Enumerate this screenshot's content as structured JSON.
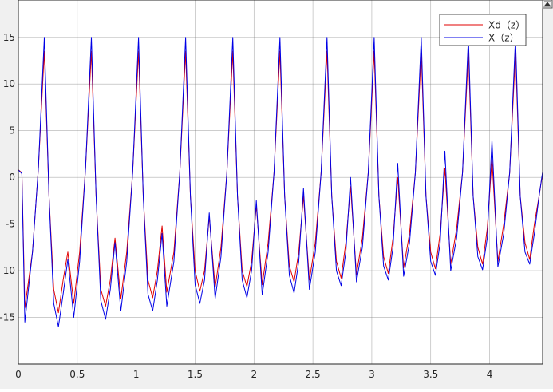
{
  "toolbar": {
    "restore_icon": "restore-axes-icon"
  },
  "colors": {
    "plot_bg": "#ffffff",
    "figure_bg": "#f0f0f0",
    "grid": "#6e6e6e",
    "axis": "#262626",
    "red": "#e00000",
    "blue": "#0000e6"
  },
  "chart_data": {
    "type": "line",
    "title": "",
    "xlabel": "",
    "ylabel": "",
    "xlim": [
      0,
      4.45
    ],
    "ylim": [
      -20,
      19
    ],
    "xticks": [
      0,
      0.5,
      1,
      1.5,
      2,
      2.5,
      3,
      3.5,
      4
    ],
    "xtick_labels": [
      "0",
      "0.5",
      "1",
      "1.5",
      "2",
      "2.5",
      "3",
      "3.5",
      "4"
    ],
    "yticks": [
      -15,
      -10,
      -5,
      0,
      5,
      10,
      15
    ],
    "ytick_labels": [
      "-15",
      "-10",
      "-5",
      "0",
      "5",
      "10",
      "15"
    ],
    "grid": true,
    "legend_position": "top-right",
    "series": [
      {
        "name": "Xd（z）",
        "color": "#e00000",
        "x": [
          0,
          0.03,
          0.055,
          0.12,
          0.17,
          0.22,
          0.26,
          0.3,
          0.34,
          0.38,
          0.42,
          0.47,
          0.52,
          0.57,
          0.62,
          0.66,
          0.7,
          0.74,
          0.78,
          0.82,
          0.87,
          0.92,
          0.97,
          1.02,
          1.06,
          1.1,
          1.14,
          1.18,
          1.22,
          1.26,
          1.32,
          1.37,
          1.42,
          1.46,
          1.5,
          1.54,
          1.58,
          1.62,
          1.67,
          1.72,
          1.77,
          1.82,
          1.86,
          1.9,
          1.94,
          1.98,
          2.02,
          2.07,
          2.12,
          2.17,
          2.22,
          2.26,
          2.3,
          2.34,
          2.38,
          2.42,
          2.47,
          2.52,
          2.57,
          2.62,
          2.66,
          2.7,
          2.74,
          2.78,
          2.82,
          2.87,
          2.92,
          2.97,
          3.02,
          3.06,
          3.1,
          3.14,
          3.18,
          3.22,
          3.27,
          3.32,
          3.37,
          3.42,
          3.46,
          3.5,
          3.54,
          3.58,
          3.62,
          3.67,
          3.72,
          3.77,
          3.82,
          3.86,
          3.9,
          3.94,
          3.98,
          4.02,
          4.07,
          4.12,
          4.17,
          4.22,
          4.26,
          4.3,
          4.34,
          4.38,
          4.42,
          4.45
        ],
        "y": [
          0.8,
          0.5,
          -14,
          -8,
          1,
          13.5,
          -2,
          -12,
          -14.5,
          -11,
          -8,
          -13.5,
          -8,
          1,
          13.5,
          -2,
          -12,
          -13.8,
          -11,
          -6.5,
          -13,
          -8,
          0.5,
          13.5,
          -2,
          -11,
          -12.9,
          -10,
          -5.2,
          -12.3,
          -8,
          0.5,
          13.5,
          -2,
          -10,
          -12.2,
          -10,
          -4.2,
          -11.8,
          -7.5,
          0.5,
          13.5,
          -2,
          -10,
          -11.7,
          -9,
          -3,
          -11.5,
          -7,
          0.5,
          13.5,
          -2,
          -9.5,
          -11.2,
          -8,
          -2,
          -11,
          -7,
          0.5,
          13.5,
          -2,
          -9,
          -10.8,
          -7,
          -1,
          -10.4,
          -6.5,
          0.5,
          13.5,
          -2,
          -8.5,
          -10.3,
          -6.5,
          0,
          -9.7,
          -6,
          0.5,
          13.5,
          -2,
          -8,
          -9.8,
          -6,
          1,
          -9.3,
          -5.5,
          0.5,
          13.5,
          -2,
          -7.5,
          -9.3,
          -5.5,
          2,
          -9,
          -5,
          0.5,
          13.5,
          -2,
          -7,
          -8.8,
          -5,
          -2,
          0.5
        ]
      },
      {
        "name": "X（z）",
        "color": "#0000e6",
        "x": [
          0,
          0.03,
          0.055,
          0.12,
          0.17,
          0.22,
          0.26,
          0.3,
          0.34,
          0.38,
          0.42,
          0.47,
          0.52,
          0.57,
          0.62,
          0.66,
          0.7,
          0.74,
          0.78,
          0.82,
          0.87,
          0.92,
          0.97,
          1.02,
          1.06,
          1.1,
          1.14,
          1.18,
          1.22,
          1.26,
          1.32,
          1.37,
          1.42,
          1.46,
          1.5,
          1.54,
          1.58,
          1.62,
          1.67,
          1.72,
          1.77,
          1.82,
          1.86,
          1.9,
          1.94,
          1.98,
          2.02,
          2.07,
          2.12,
          2.17,
          2.22,
          2.26,
          2.3,
          2.34,
          2.38,
          2.42,
          2.47,
          2.52,
          2.57,
          2.62,
          2.66,
          2.7,
          2.74,
          2.78,
          2.82,
          2.87,
          2.92,
          2.97,
          3.02,
          3.06,
          3.1,
          3.14,
          3.18,
          3.22,
          3.27,
          3.32,
          3.37,
          3.42,
          3.46,
          3.5,
          3.54,
          3.58,
          3.62,
          3.67,
          3.72,
          3.77,
          3.82,
          3.86,
          3.9,
          3.94,
          3.98,
          4.02,
          4.07,
          4.12,
          4.17,
          4.22,
          4.26,
          4.3,
          4.34,
          4.38,
          4.42,
          4.45
        ],
        "y": [
          0.8,
          0.4,
          -15.5,
          -8,
          1,
          15,
          -2,
          -13.5,
          -16,
          -12.5,
          -8.8,
          -15,
          -9,
          1,
          15,
          -2,
          -13.2,
          -15.2,
          -12,
          -7,
          -14.3,
          -9,
          0.5,
          15,
          -2,
          -12.5,
          -14.3,
          -11,
          -6,
          -13.8,
          -9,
          0.5,
          15,
          -2,
          -11.5,
          -13.5,
          -11,
          -3.8,
          -13,
          -8.5,
          0.5,
          15,
          -2,
          -11,
          -12.9,
          -10,
          -2.5,
          -12.6,
          -8,
          0.5,
          15,
          -2,
          -10.5,
          -12.4,
          -9,
          -1.2,
          -12,
          -8,
          0.5,
          15,
          -2,
          -10,
          -11.6,
          -8,
          0,
          -11.2,
          -7.5,
          0.5,
          15,
          -2,
          -9.5,
          -11,
          -7.5,
          1.5,
          -10.6,
          -7,
          0.5,
          15,
          -2,
          -9,
          -10.5,
          -7,
          2.8,
          -10,
          -6.5,
          0.5,
          15,
          -2,
          -8.5,
          -9.9,
          -6.5,
          4,
          -9.6,
          -6,
          0.5,
          15,
          -2,
          -8,
          -9.3,
          -6,
          -2,
          0.6
        ]
      }
    ]
  }
}
